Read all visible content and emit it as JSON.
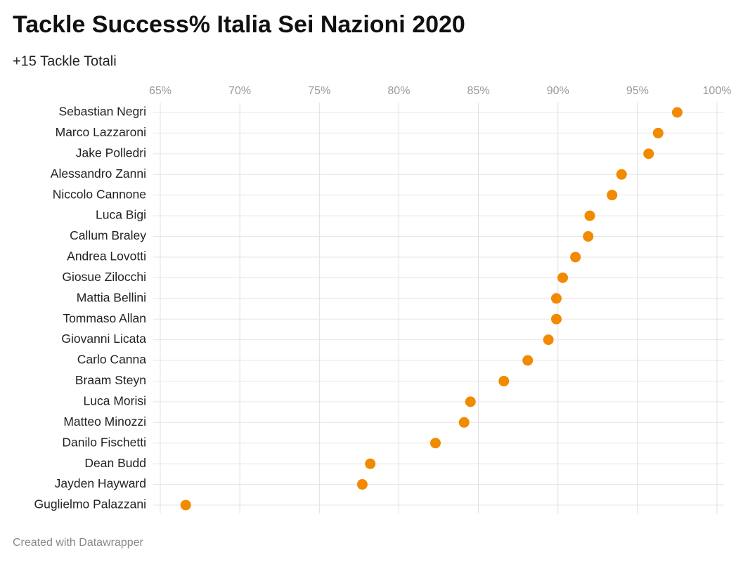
{
  "chart_data": {
    "type": "dot",
    "title": "Tackle Success% Italia Sei Nazioni 2020",
    "subtitle": "+15 Tackle Totali",
    "credit": "Created with Datawrapper",
    "categories": [
      "Sebastian Negri",
      "Marco Lazzaroni",
      "Jake Polledri",
      "Alessandro Zanni",
      "Niccolo Cannone",
      "Luca Bigi",
      "Callum Braley",
      "Andrea Lovotti",
      "Giosue Zilocchi",
      "Mattia Bellini",
      "Tommaso Allan",
      "Giovanni Licata",
      "Carlo Canna",
      "Braam Steyn",
      "Luca Morisi",
      "Matteo Minozzi",
      "Danilo Fischetti",
      "Dean Budd",
      "Jayden Hayward",
      "Guglielmo Palazzani"
    ],
    "values": [
      97.5,
      96.3,
      95.7,
      94.0,
      93.4,
      92.0,
      91.9,
      91.1,
      90.3,
      89.9,
      89.9,
      89.4,
      88.1,
      86.6,
      84.5,
      84.1,
      82.3,
      78.2,
      77.7,
      66.6
    ],
    "color": "#f28a00",
    "xlim": [
      65,
      100
    ],
    "xticks": [
      {
        "value": 65,
        "label": "65%"
      },
      {
        "value": 70,
        "label": "70%"
      },
      {
        "value": 75,
        "label": "75%"
      },
      {
        "value": 80,
        "label": "80%"
      },
      {
        "value": 85,
        "label": "85%"
      },
      {
        "value": 90,
        "label": "90%"
      },
      {
        "value": 95,
        "label": "95%"
      },
      {
        "value": 100,
        "label": "100%"
      }
    ],
    "grid": true
  }
}
